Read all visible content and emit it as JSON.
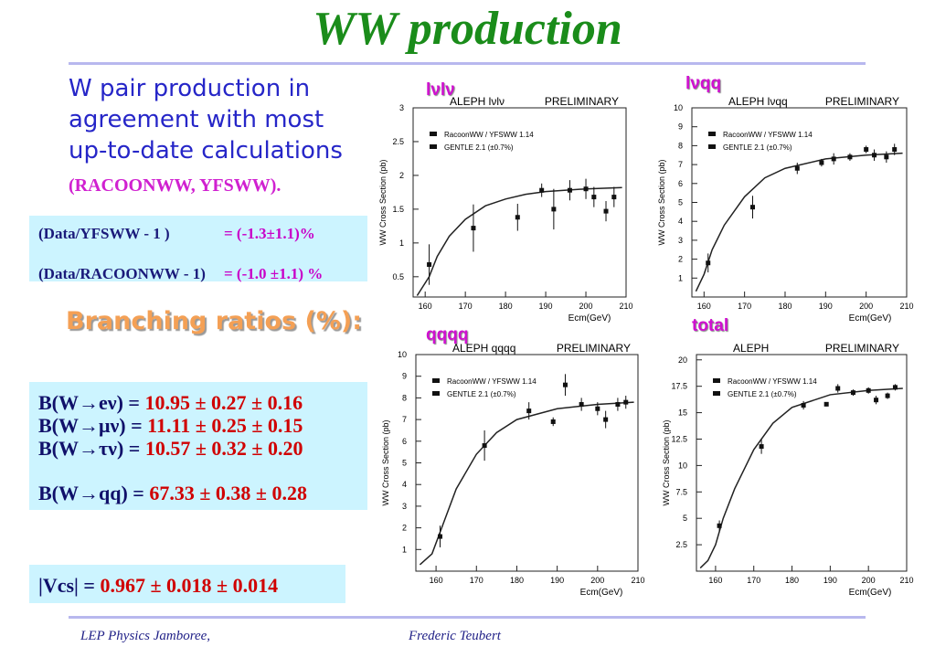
{
  "slide": {
    "title": "WW production",
    "intro": [
      "W pair production in",
      "agreement with most",
      "up-to-date calculations"
    ],
    "intro_refs": "(RACOONWW, YFSWW).",
    "ratios": [
      {
        "label": "(Data/YFSWW  - 1 )",
        "value": "= (-1.3±1.1)%"
      },
      {
        "label": "(Data/RACOONWW - 1)",
        "value": "= (-1.0 ±1.1) %"
      }
    ],
    "branching_heading": "Branching ratios (%):",
    "branching": [
      {
        "label": "B(W→eν) = ",
        "value": "10.95 ± 0.27 ± 0.16"
      },
      {
        "label": "B(W→μν) = ",
        "value": "11.11 ± 0.25 ± 0.15"
      },
      {
        "label": "B(W→τν) = ",
        "value": "10.57 ± 0.32 ± 0.20"
      },
      {
        "label": "B(W→qq) = ",
        "value": "67.33 ± 0.38 ± 0.28"
      }
    ],
    "vcs": {
      "label": "|Vcs| = ",
      "value": "0.967 ± 0.018 ± 0.014"
    },
    "footer_left": "LEP Physics Jamboree,",
    "footer_right": "Frederic Teubert"
  },
  "chart_data": [
    {
      "type": "scatter",
      "tag": "lνlν",
      "title": "ALEPH lνlν",
      "subtitle": "PRELIMINARY",
      "y_label": "WW Cross Section (pb)",
      "x_label": "Ecm(GeV)",
      "legend": [
        "RacoonWW / YFSWW 1.14",
        "GENTLE 2.1 (±0.7%)"
      ],
      "xlim": [
        157,
        210
      ],
      "xticks": [
        160,
        170,
        180,
        190,
        200,
        210
      ],
      "ylim": [
        0.2,
        3
      ],
      "yticks": [
        0.5,
        1,
        1.5,
        2,
        2.5,
        3
      ],
      "points": {
        "x": [
          161,
          172,
          183,
          189,
          192,
          196,
          200,
          202,
          205,
          207
        ],
        "values": [
          0.68,
          1.22,
          1.38,
          1.78,
          1.5,
          1.78,
          1.8,
          1.68,
          1.47,
          1.68
        ],
        "errors": [
          0.3,
          0.35,
          0.2,
          0.1,
          0.3,
          0.15,
          0.15,
          0.15,
          0.15,
          0.15
        ]
      },
      "curve": {
        "x": [
          158,
          161,
          163,
          166,
          170,
          175,
          180,
          185,
          190,
          200,
          209
        ],
        "values": [
          0.22,
          0.5,
          0.8,
          1.1,
          1.35,
          1.55,
          1.65,
          1.72,
          1.76,
          1.8,
          1.82
        ]
      }
    },
    {
      "type": "scatter",
      "tag": "lνqq",
      "title": "ALEPH lνqq",
      "subtitle": "PRELIMINARY",
      "y_label": "WW Cross Section (pb)",
      "x_label": "Ecm(GeV)",
      "legend": [
        "RacoonWW / YFSWW 1.14",
        "GENTLE 2.1 (±0.7%)"
      ],
      "xlim": [
        157,
        210
      ],
      "xticks": [
        160,
        170,
        180,
        190,
        200,
        210
      ],
      "ylim": [
        0,
        10
      ],
      "yticks": [
        1,
        2,
        3,
        4,
        5,
        6,
        7,
        8,
        9,
        10
      ],
      "points": {
        "x": [
          161,
          172,
          183,
          189,
          192,
          196,
          200,
          202,
          205,
          207
        ],
        "values": [
          1.8,
          4.75,
          6.8,
          7.1,
          7.3,
          7.4,
          7.8,
          7.5,
          7.4,
          7.8
        ],
        "errors": [
          0.5,
          0.6,
          0.3,
          0.2,
          0.3,
          0.2,
          0.2,
          0.3,
          0.3,
          0.3
        ]
      },
      "curve": {
        "x": [
          158,
          160,
          162,
          165,
          170,
          175,
          180,
          190,
          200,
          209
        ],
        "values": [
          0.3,
          1.2,
          2.5,
          3.8,
          5.3,
          6.3,
          6.8,
          7.3,
          7.5,
          7.6
        ]
      }
    },
    {
      "type": "scatter",
      "tag": "qqqq",
      "title": "ALEPH qqqq",
      "subtitle": "PRELIMINARY",
      "y_label": "WW Cross Section (pb)",
      "x_label": "Ecm(GeV)",
      "legend": [
        "RacoonWW / YFSWW 1.14",
        "GENTLE 2.1 (±0.7%)"
      ],
      "xlim": [
        155,
        210
      ],
      "xticks": [
        160,
        170,
        180,
        190,
        200,
        210
      ],
      "ylim": [
        0,
        10
      ],
      "yticks": [
        1,
        2,
        3,
        4,
        5,
        6,
        7,
        8,
        9,
        10
      ],
      "points": {
        "x": [
          161,
          172,
          183,
          189,
          192,
          196,
          200,
          202,
          205,
          207
        ],
        "values": [
          1.6,
          5.8,
          7.4,
          6.9,
          8.6,
          7.7,
          7.5,
          7.0,
          7.7,
          7.8
        ],
        "errors": [
          0.5,
          0.7,
          0.4,
          0.2,
          0.5,
          0.3,
          0.3,
          0.4,
          0.3,
          0.3
        ]
      },
      "curve": {
        "x": [
          156,
          159,
          162,
          165,
          170,
          175,
          180,
          190,
          200,
          209
        ],
        "values": [
          0.3,
          0.8,
          2.3,
          3.8,
          5.4,
          6.4,
          7.0,
          7.5,
          7.7,
          7.8
        ]
      }
    },
    {
      "type": "scatter",
      "tag": "total",
      "title": "ALEPH",
      "subtitle": "PRELIMINARY",
      "y_label": "WW Cross Section (pb)",
      "x_label": "Ecm(GeV)",
      "legend": [
        "RacoonWW / YFSWW 1.14",
        "GENTLE 2.1 (±0.7%)"
      ],
      "xlim": [
        155,
        210
      ],
      "xticks": [
        160,
        170,
        180,
        190,
        200,
        210
      ],
      "ylim": [
        0,
        20.5
      ],
      "yticks": [
        2.5,
        5,
        7.5,
        10,
        12.5,
        15,
        17.5,
        20
      ],
      "points": {
        "x": [
          161,
          172,
          183,
          189,
          192,
          196,
          200,
          202,
          205,
          207
        ],
        "values": [
          4.3,
          11.8,
          15.7,
          15.8,
          17.3,
          16.9,
          17.1,
          16.2,
          16.6,
          17.4
        ],
        "errors": [
          0.5,
          0.7,
          0.4,
          0.2,
          0.4,
          0.3,
          0.3,
          0.4,
          0.3,
          0.3
        ]
      },
      "curve": {
        "x": [
          156,
          158,
          160,
          162,
          165,
          170,
          175,
          180,
          190,
          200,
          209
        ],
        "values": [
          0.3,
          1.0,
          2.5,
          5.0,
          7.8,
          11.5,
          14.0,
          15.5,
          16.7,
          17.1,
          17.3
        ]
      }
    }
  ]
}
